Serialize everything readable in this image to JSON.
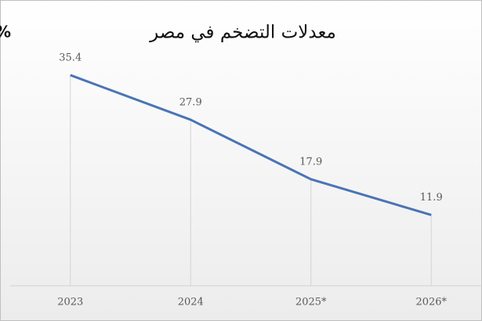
{
  "chart_data": {
    "type": "line",
    "title": "معدلات التضخم في مصر",
    "y_label": "%",
    "categories": [
      "2023",
      "2024",
      "2025*",
      "2026*"
    ],
    "values": [
      35.4,
      27.9,
      17.9,
      11.9
    ],
    "color": "#4a74b5",
    "ylim": [
      0,
      40
    ],
    "drop_lines": true
  }
}
